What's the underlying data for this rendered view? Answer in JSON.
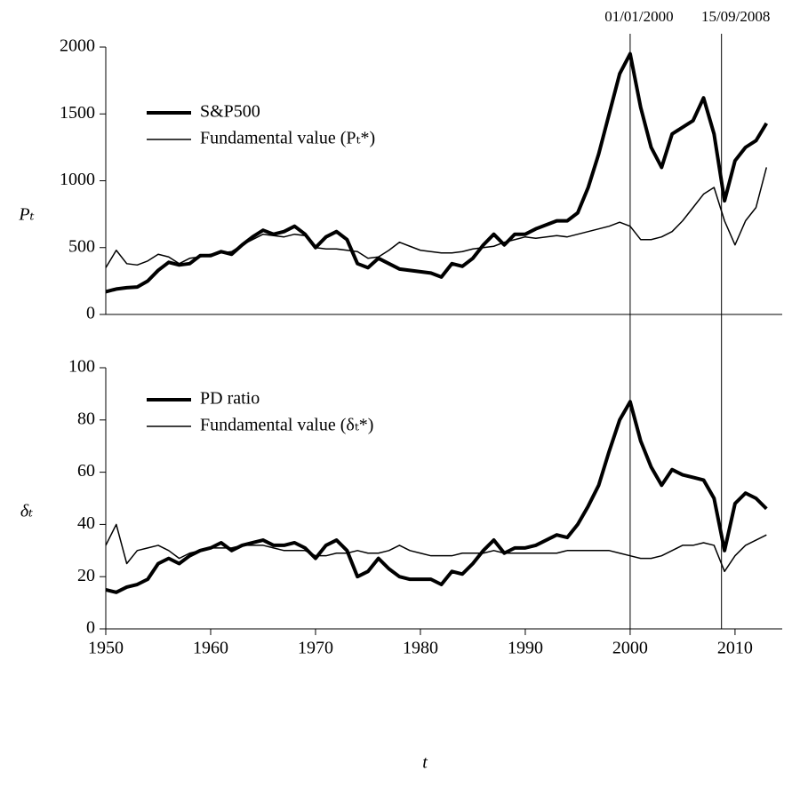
{
  "chart_data": [
    {
      "type": "line",
      "ylabel": "Pₜ",
      "x": [
        1950,
        1951,
        1952,
        1953,
        1954,
        1955,
        1956,
        1957,
        1958,
        1959,
        1960,
        1961,
        1962,
        1963,
        1964,
        1965,
        1966,
        1967,
        1968,
        1969,
        1970,
        1971,
        1972,
        1973,
        1974,
        1975,
        1976,
        1977,
        1978,
        1979,
        1980,
        1981,
        1982,
        1983,
        1984,
        1985,
        1986,
        1987,
        1988,
        1989,
        1990,
        1991,
        1992,
        1993,
        1994,
        1995,
        1996,
        1997,
        1998,
        1999,
        2000,
        2001,
        2002,
        2003,
        2004,
        2005,
        2006,
        2007,
        2008,
        2009,
        2010,
        2011,
        2012,
        2013
      ],
      "series": [
        {
          "name": "S&P500",
          "color": "#000000",
          "linewidth": 4,
          "values": [
            170,
            190,
            200,
            205,
            250,
            330,
            390,
            370,
            380,
            440,
            440,
            470,
            450,
            520,
            580,
            630,
            600,
            620,
            660,
            600,
            500,
            580,
            620,
            560,
            380,
            350,
            420,
            380,
            340,
            330,
            320,
            310,
            280,
            380,
            360,
            420,
            520,
            600,
            520,
            600,
            600,
            640,
            670,
            700,
            700,
            760,
            950,
            1200,
            1500,
            1800,
            1950,
            1550,
            1250,
            1100,
            1350,
            1400,
            1450,
            1620,
            1350,
            850,
            1150,
            1250,
            1300,
            1430
          ]
        },
        {
          "name": "Fundamental value (Pₜ*)",
          "color": "#000000",
          "linewidth": 1.5,
          "values": [
            350,
            480,
            380,
            370,
            400,
            450,
            430,
            380,
            420,
            430,
            450,
            460,
            470,
            520,
            560,
            600,
            590,
            580,
            600,
            590,
            500,
            490,
            490,
            480,
            470,
            420,
            430,
            480,
            540,
            510,
            480,
            470,
            460,
            460,
            470,
            490,
            500,
            510,
            540,
            560,
            580,
            570,
            580,
            590,
            580,
            600,
            620,
            640,
            660,
            690,
            660,
            560,
            560,
            580,
            620,
            700,
            800,
            900,
            950,
            700,
            520,
            700,
            800,
            1100
          ]
        }
      ],
      "xlim": [
        1950,
        2014.5
      ],
      "ylim": [
        0,
        2000
      ],
      "yticks": [
        0,
        500,
        1000,
        1500,
        2000
      ],
      "legend": "upper left",
      "annotations": [
        {
          "x": 2000,
          "label": "01/01/2000"
        },
        {
          "x": 2008.71,
          "label": "15/09/2008"
        }
      ]
    },
    {
      "type": "line",
      "ylabel": "δₜ",
      "xlabel": "t",
      "x": [
        1950,
        1951,
        1952,
        1953,
        1954,
        1955,
        1956,
        1957,
        1958,
        1959,
        1960,
        1961,
        1962,
        1963,
        1964,
        1965,
        1966,
        1967,
        1968,
        1969,
        1970,
        1971,
        1972,
        1973,
        1974,
        1975,
        1976,
        1977,
        1978,
        1979,
        1980,
        1981,
        1982,
        1983,
        1984,
        1985,
        1986,
        1987,
        1988,
        1989,
        1990,
        1991,
        1992,
        1993,
        1994,
        1995,
        1996,
        1997,
        1998,
        1999,
        2000,
        2001,
        2002,
        2003,
        2004,
        2005,
        2006,
        2007,
        2008,
        2009,
        2010,
        2011,
        2012,
        2013
      ],
      "series": [
        {
          "name": "PD ratio",
          "color": "#000000",
          "linewidth": 4,
          "values": [
            15,
            14,
            16,
            17,
            19,
            25,
            27,
            25,
            28,
            30,
            31,
            33,
            30,
            32,
            33,
            34,
            32,
            32,
            33,
            31,
            27,
            32,
            34,
            30,
            20,
            22,
            27,
            23,
            20,
            19,
            19,
            19,
            17,
            22,
            21,
            25,
            30,
            34,
            29,
            31,
            31,
            32,
            34,
            36,
            35,
            40,
            47,
            55,
            68,
            80,
            87,
            72,
            62,
            55,
            61,
            59,
            58,
            57,
            50,
            30,
            48,
            52,
            50,
            46
          ]
        },
        {
          "name": "Fundamental value (δₜ*)",
          "color": "#000000",
          "linewidth": 1.5,
          "values": [
            32,
            40,
            25,
            30,
            31,
            32,
            30,
            27,
            29,
            30,
            31,
            31,
            31,
            32,
            32,
            32,
            31,
            30,
            30,
            30,
            28,
            28,
            29,
            29,
            30,
            29,
            29,
            30,
            32,
            30,
            29,
            28,
            28,
            28,
            29,
            29,
            29,
            30,
            29,
            29,
            29,
            29,
            29,
            29,
            30,
            30,
            30,
            30,
            30,
            29,
            28,
            27,
            27,
            28,
            30,
            32,
            32,
            33,
            32,
            22,
            28,
            32,
            34,
            36
          ]
        }
      ],
      "xlim": [
        1950,
        2014.5
      ],
      "ylim": [
        0,
        100
      ],
      "yticks": [
        0,
        20,
        40,
        60,
        80,
        100
      ],
      "xticks": [
        1950,
        1960,
        1970,
        1980,
        1990,
        2000,
        2010
      ],
      "legend": "upper left"
    }
  ]
}
